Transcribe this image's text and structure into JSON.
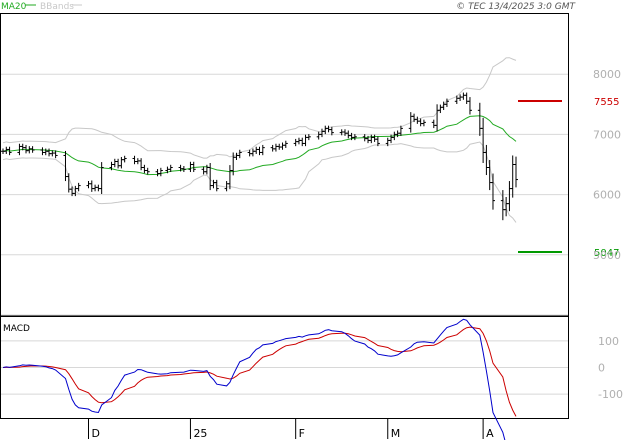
{
  "header": {
    "ma_label": "MA20",
    "bb_label": "BBands",
    "copyright": "© TEC 13/4/2025 3:0 GMT"
  },
  "macd_panel": {
    "label": "MACD"
  },
  "colors": {
    "ma": "#22aa22",
    "bb": "#c8c8c8",
    "price": "#000000",
    "resistance": "#cc0000",
    "support": "#009900",
    "macd": "#0000cc",
    "signal": "#cc0000",
    "grid": "#d8d8d8",
    "axis_text": "#b0b0b0"
  },
  "chart_data": [
    {
      "type": "line",
      "title": "",
      "x_ticks": [
        {
          "label": "D",
          "date": "2024-12-02"
        },
        {
          "label": "25",
          "date": "2025-01-02"
        },
        {
          "label": "F",
          "date": "2025-02-03"
        },
        {
          "label": "M",
          "date": "2025-03-03"
        },
        {
          "label": "A",
          "date": "2025-04-01"
        }
      ],
      "y_ticks": [
        5000,
        6000,
        7000,
        8000
      ],
      "ylim": [
        4000,
        9000
      ],
      "levels": [
        {
          "name": "resistance",
          "value": 7555,
          "label": "7555"
        },
        {
          "name": "support",
          "value": 5047,
          "label": "5047"
        }
      ],
      "series": [
        {
          "name": "Price",
          "style": "ohlc-bar",
          "dates": [
            "2024-11-06",
            "2024-11-07",
            "2024-11-08",
            "2024-11-11",
            "2024-11-12",
            "2024-11-13",
            "2024-11-14",
            "2024-11-15",
            "2024-11-18",
            "2024-11-19",
            "2024-11-20",
            "2024-11-21",
            "2024-11-22",
            "2024-11-25",
            "2024-11-26",
            "2024-11-27",
            "2024-11-28",
            "2024-11-29",
            "2024-12-02",
            "2024-12-03",
            "2024-12-04",
            "2024-12-05",
            "2024-12-06",
            "2024-12-09",
            "2024-12-10",
            "2024-12-11",
            "2024-12-12",
            "2024-12-13",
            "2024-12-16",
            "2024-12-17",
            "2024-12-18",
            "2024-12-19",
            "2024-12-20",
            "2024-12-23",
            "2024-12-24",
            "2024-12-26",
            "2024-12-27",
            "2024-12-30",
            "2024-12-31",
            "2025-01-02",
            "2025-01-03",
            "2025-01-06",
            "2025-01-07",
            "2025-01-08",
            "2025-01-09",
            "2025-01-10",
            "2025-01-13",
            "2025-01-14",
            "2025-01-15",
            "2025-01-16",
            "2025-01-17",
            "2025-01-20",
            "2025-01-21",
            "2025-01-22",
            "2025-01-23",
            "2025-01-24",
            "2025-01-27",
            "2025-01-28",
            "2025-01-29",
            "2025-01-30",
            "2025-01-31",
            "2025-02-03",
            "2025-02-04",
            "2025-02-05",
            "2025-02-06",
            "2025-02-07",
            "2025-02-10",
            "2025-02-11",
            "2025-02-12",
            "2025-02-13",
            "2025-02-14",
            "2025-02-17",
            "2025-02-18",
            "2025-02-19",
            "2025-02-20",
            "2025-02-21",
            "2025-02-24",
            "2025-02-25",
            "2025-02-26",
            "2025-02-27",
            "2025-02-28",
            "2025-03-03",
            "2025-03-04",
            "2025-03-05",
            "2025-03-06",
            "2025-03-07",
            "2025-03-10",
            "2025-03-11",
            "2025-03-12",
            "2025-03-13",
            "2025-03-14",
            "2025-03-17",
            "2025-03-18",
            "2025-03-19",
            "2025-03-20",
            "2025-03-21",
            "2025-03-24",
            "2025-03-25",
            "2025-03-26",
            "2025-03-27",
            "2025-03-28",
            "2025-03-31",
            "2025-04-01",
            "2025-04-02",
            "2025-04-03",
            "2025-04-04",
            "2025-04-07",
            "2025-04-08",
            "2025-04-09",
            "2025-04-10",
            "2025-04-11"
          ],
          "close": [
            6720,
            6750,
            6700,
            6800,
            6780,
            6730,
            6760,
            6740,
            6700,
            6720,
            6680,
            6690,
            6650,
            6300,
            6090,
            6020,
            6100,
            6150,
            6180,
            6100,
            6120,
            6100,
            6450,
            6500,
            6550,
            6480,
            6580,
            6600,
            6550,
            6560,
            6450,
            6400,
            6380,
            6350,
            6400,
            6420,
            6450,
            6430,
            6420,
            6500,
            6420,
            6380,
            6450,
            6150,
            6200,
            6100,
            6180,
            6400,
            6620,
            6650,
            6700,
            6680,
            6720,
            6750,
            6700,
            6780,
            6760,
            6800,
            6790,
            6820,
            6850,
            6880,
            6900,
            6850,
            6950,
            6960,
            7000,
            7050,
            7100,
            7080,
            7030,
            7040,
            7020,
            6980,
            6950,
            6960,
            6930,
            6900,
            6950,
            6920,
            6850,
            6900,
            6950,
            7000,
            7020,
            7100,
            7300,
            7250,
            7220,
            7180,
            7200,
            7150,
            7400,
            7450,
            7500,
            7550,
            7600,
            7620,
            7650,
            7550,
            7400,
            7100,
            6700,
            6450,
            6200,
            5900,
            5750,
            5850,
            6100,
            6500,
            6250
          ],
          "volatility": [
            90,
            90,
            90,
            90,
            90,
            90,
            90,
            90,
            90,
            90,
            90,
            90,
            90,
            150,
            110,
            90,
            90,
            90,
            90,
            110,
            90,
            90,
            180,
            90,
            90,
            90,
            90,
            90,
            90,
            90,
            90,
            90,
            90,
            90,
            90,
            90,
            90,
            90,
            90,
            90,
            90,
            90,
            90,
            150,
            90,
            90,
            90,
            180,
            160,
            90,
            90,
            90,
            90,
            90,
            90,
            90,
            90,
            90,
            90,
            90,
            90,
            90,
            90,
            90,
            90,
            90,
            90,
            90,
            90,
            90,
            90,
            90,
            90,
            90,
            90,
            90,
            90,
            90,
            90,
            90,
            90,
            90,
            90,
            90,
            90,
            90,
            140,
            90,
            90,
            90,
            90,
            90,
            200,
            90,
            90,
            90,
            90,
            90,
            90,
            90,
            140,
            250,
            350,
            250,
            250,
            300,
            350,
            220,
            250,
            300,
            260
          ]
        },
        {
          "name": "MA20",
          "style": "line"
        },
        {
          "name": "BBands",
          "style": "band"
        }
      ]
    },
    {
      "type": "line",
      "title": "MACD",
      "y_ticks": [
        100,
        0,
        -100
      ],
      "ylim": [
        -190,
        190
      ],
      "series": [
        {
          "name": "MACD",
          "color": "#0000cc"
        },
        {
          "name": "Signal",
          "color": "#cc0000"
        }
      ]
    }
  ]
}
